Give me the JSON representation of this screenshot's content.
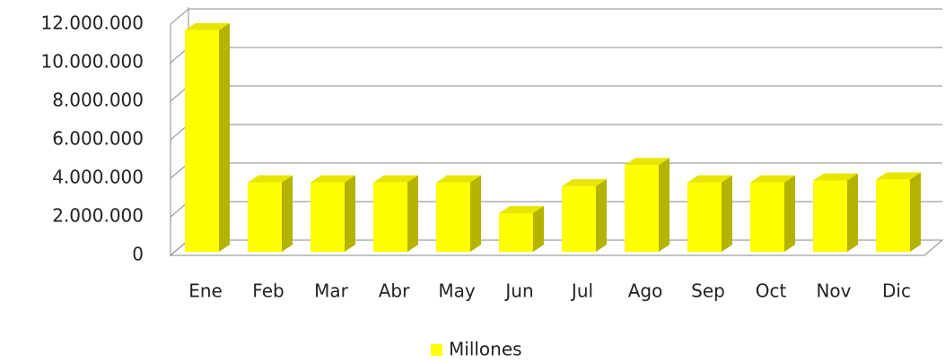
{
  "chart_data": {
    "type": "bar3d",
    "categories": [
      "Ene",
      "Feb",
      "Mar",
      "Abr",
      "May",
      "Jun",
      "Jul",
      "Ago",
      "Sep",
      "Oct",
      "Nov",
      "Dic"
    ],
    "series": [
      {
        "name": "Millones",
        "color": "#ffff00",
        "values": [
          11500000,
          3600000,
          3600000,
          3600000,
          3600000,
          2000000,
          3400000,
          4500000,
          3600000,
          3600000,
          3700000,
          3750000
        ]
      }
    ],
    "ylim": [
      0,
      12000000
    ],
    "yticks": [
      {
        "value": 0,
        "label": "0"
      },
      {
        "value": 2000000,
        "label": "2.000.000"
      },
      {
        "value": 4000000,
        "label": "4.000.000"
      },
      {
        "value": 6000000,
        "label": "6.000.000"
      },
      {
        "value": 8000000,
        "label": "8.000.000"
      },
      {
        "value": 10000000,
        "label": "10.000.000"
      },
      {
        "value": 12000000,
        "label": "12.000.000"
      }
    ],
    "grid": true,
    "legend": "bottom"
  }
}
